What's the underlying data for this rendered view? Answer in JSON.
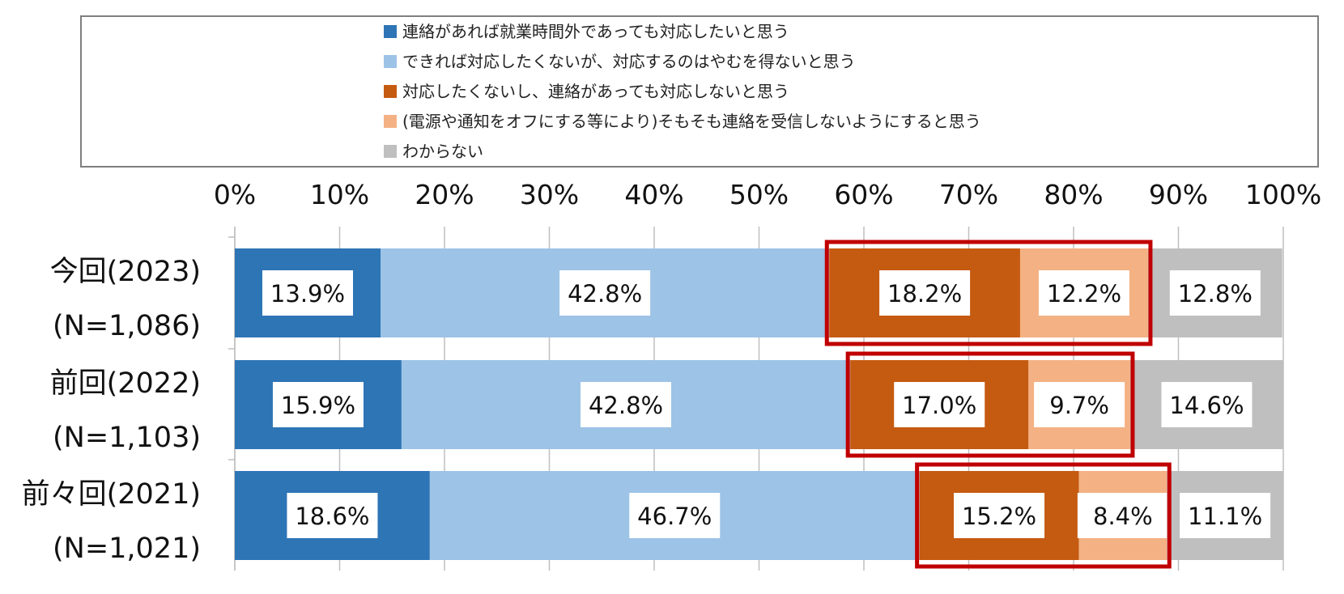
{
  "chart_data": {
    "type": "bar",
    "orientation": "horizontal",
    "stacked": true,
    "percent_stacked": true,
    "categories": [
      [
        "今回(2023)",
        "(N=1,086)"
      ],
      [
        "前回(2022)",
        "(N=1,103)"
      ],
      [
        "前々回(2021)",
        "(N=1,021)"
      ]
    ],
    "series": [
      {
        "name": "連絡があれば就業時間外であっても対応したいと思う",
        "color": "#2e75b6",
        "values": [
          13.9,
          15.9,
          18.6
        ],
        "labels": [
          "13.9%",
          "15.9%",
          "18.6%"
        ]
      },
      {
        "name": "できれば対応したくないが、対応するのはやむを得ないと思う",
        "color": "#9dc3e6",
        "values": [
          42.8,
          42.8,
          46.7
        ],
        "labels": [
          "42.8%",
          "42.8%",
          "46.7%"
        ]
      },
      {
        "name": "対応したくないし、連絡があっても対応しないと思う",
        "color": "#c55a11",
        "values": [
          18.2,
          17.0,
          15.2
        ],
        "labels": [
          "18.2%",
          "17.0%",
          "15.2%"
        ]
      },
      {
        "name": "(電源や通知をオフにする等により)そもそも連絡を受信しないようにすると思う",
        "color": "#f4b183",
        "values": [
          12.2,
          9.7,
          8.4
        ],
        "labels": [
          "12.2%",
          "9.7%",
          "8.4%"
        ]
      },
      {
        "name": "わからない",
        "color": "#bfbfbf",
        "values": [
          12.8,
          14.6,
          11.1
        ],
        "labels": [
          "12.8%",
          "14.6%",
          "11.1%"
        ]
      }
    ],
    "xlim": [
      0,
      100
    ],
    "x_ticks": [
      "0%",
      "10%",
      "20%",
      "30%",
      "40%",
      "50%",
      "60%",
      "70%",
      "80%",
      "90%",
      "100%"
    ],
    "grid": "vertical",
    "legend_position": "top",
    "highlight": {
      "series_indices": [
        2,
        3
      ],
      "color": "#c00000"
    }
  }
}
